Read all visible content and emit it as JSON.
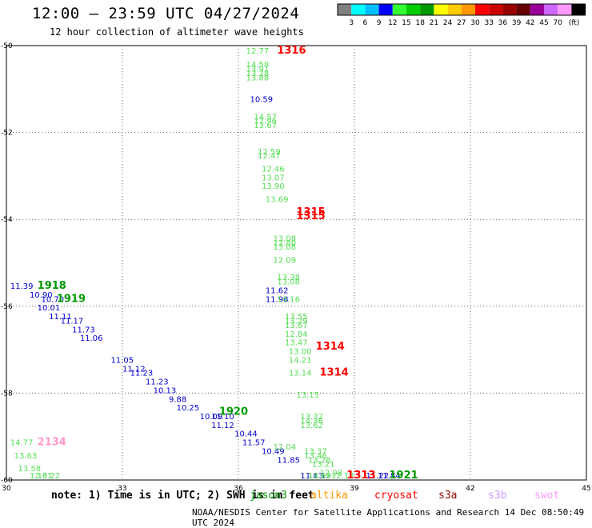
{
  "header": {
    "title": "12:00 — 23:59 UTC 04/27/2024",
    "subtitle": "12 hour collection of altimeter wave heights"
  },
  "colorbar": {
    "colors": [
      "#808080",
      "#00ffff",
      "#00bfff",
      "#0000ff",
      "#33ff33",
      "#00cc00",
      "#009900",
      "#ffff00",
      "#ffcc00",
      "#ff9900",
      "#ff0000",
      "#cc0000",
      "#990000",
      "#660000",
      "#990099",
      "#cc66ff",
      "#ff99ff",
      "#000000"
    ],
    "labels": [
      "3",
      "6",
      "9",
      "12",
      "15",
      "18",
      "21",
      "24",
      "27",
      "30",
      "33",
      "36",
      "39",
      "42",
      "45",
      "70"
    ],
    "unit": "(ft)"
  },
  "footer": {
    "note": "note: 1) Time is in UTC; 2) SWH is in feet",
    "credit": "NOAA/NESDIS Center for Satellite Applications and Research   14 Dec 08:50:49 UTC 2024",
    "satellites": [
      {
        "name": "jason3",
        "color": "#009900"
      },
      {
        "name": "altika",
        "color": "#ff9900"
      },
      {
        "name": "cryosat",
        "color": "#ff0000"
      },
      {
        "name": "s3a",
        "color": "#990000"
      },
      {
        "name": "s3b",
        "color": "#cc99ff"
      },
      {
        "name": "swot",
        "color": "#ff99ff"
      }
    ]
  },
  "chart_data": {
    "type": "scatter",
    "title": "12:00 — 23:59 UTC 04/27/2024",
    "subtitle": "12 hour collection of altimeter wave heights",
    "xlabel": "",
    "ylabel": "",
    "xlim": [
      30,
      45
    ],
    "ylim": [
      -60,
      -50
    ],
    "xticks": [
      "30",
      "33",
      "36",
      "39",
      "42",
      "45"
    ],
    "yticks": [
      "-50",
      "-52",
      "-54",
      "-56",
      "-58",
      "-60"
    ],
    "grid": true,
    "series": [
      {
        "color": "#0000cc",
        "points": [
          {
            "x": 30.1,
            "y": -55.6,
            "label": "11.39"
          },
          {
            "x": 30.6,
            "y": -55.8,
            "label": "10.90"
          },
          {
            "x": 30.9,
            "y": -55.9,
            "label": "10.70"
          },
          {
            "x": 30.8,
            "y": -56.1,
            "label": "10.01"
          },
          {
            "x": 31.1,
            "y": -56.3,
            "label": "11.11"
          },
          {
            "x": 31.4,
            "y": -56.4,
            "label": "11.17"
          },
          {
            "x": 31.7,
            "y": -56.6,
            "label": "11.73"
          },
          {
            "x": 31.9,
            "y": -56.8,
            "label": "11.06"
          },
          {
            "x": 32.7,
            "y": -57.3,
            "label": "11.05"
          },
          {
            "x": 33.0,
            "y": -57.5,
            "label": "11.12"
          },
          {
            "x": 33.2,
            "y": -57.6,
            "label": "11.23"
          },
          {
            "x": 33.6,
            "y": -57.8,
            "label": "11.23"
          },
          {
            "x": 33.8,
            "y": -58.0,
            "label": "10.13"
          },
          {
            "x": 34.2,
            "y": -58.2,
            "label": "9.88"
          },
          {
            "x": 34.4,
            "y": -58.4,
            "label": "10.25"
          },
          {
            "x": 35.0,
            "y": -58.6,
            "label": "10.09"
          },
          {
            "x": 35.3,
            "y": -58.6,
            "label": "11.10"
          },
          {
            "x": 35.3,
            "y": -58.8,
            "label": "11.12"
          },
          {
            "x": 35.9,
            "y": -59.0,
            "label": "10.44"
          },
          {
            "x": 36.1,
            "y": -59.2,
            "label": "11.57"
          },
          {
            "x": 36.6,
            "y": -59.4,
            "label": "10.49"
          },
          {
            "x": 37.0,
            "y": -59.6,
            "label": "11.85"
          },
          {
            "x": 37.6,
            "y": -60.0,
            "label": "11.83"
          },
          {
            "x": 37.8,
            "y": -60.2,
            "label": "11.12"
          },
          {
            "x": 39.3,
            "y": -60.7,
            "label": "11.22"
          },
          {
            "x": 39.6,
            "y": -60.8,
            "label": "11.84"
          },
          {
            "x": 36.3,
            "y": -51.3,
            "label": "10.59"
          },
          {
            "x": 36.7,
            "y": -55.7,
            "label": "11.62"
          },
          {
            "x": 36.7,
            "y": -55.9,
            "label": "11.98"
          }
        ]
      },
      {
        "color": "#55dd55",
        "points": [
          {
            "x": 36.2,
            "y": -50.1,
            "label": "12.77"
          },
          {
            "x": 36.2,
            "y": -50.5,
            "label": "14.58"
          },
          {
            "x": 36.2,
            "y": -50.6,
            "label": "13.91"
          },
          {
            "x": 36.2,
            "y": -50.7,
            "label": "13.28"
          },
          {
            "x": 36.2,
            "y": -50.8,
            "label": "13.88"
          },
          {
            "x": 36.4,
            "y": -51.7,
            "label": "14.57"
          },
          {
            "x": 36.4,
            "y": -51.8,
            "label": "12.96"
          },
          {
            "x": 36.4,
            "y": -51.9,
            "label": "13.67"
          },
          {
            "x": 36.5,
            "y": -52.5,
            "label": "12.59"
          },
          {
            "x": 36.5,
            "y": -52.6,
            "label": "12.47"
          },
          {
            "x": 36.6,
            "y": -52.9,
            "label": "12.46"
          },
          {
            "x": 36.6,
            "y": -53.1,
            "label": "13.07"
          },
          {
            "x": 36.6,
            "y": -53.3,
            "label": "13.90"
          },
          {
            "x": 36.7,
            "y": -53.6,
            "label": "13.69"
          },
          {
            "x": 36.9,
            "y": -54.5,
            "label": "13.08"
          },
          {
            "x": 36.9,
            "y": -54.6,
            "label": "12.80"
          },
          {
            "x": 36.9,
            "y": -54.7,
            "label": "13.08"
          },
          {
            "x": 36.9,
            "y": -55.0,
            "label": "12.09"
          },
          {
            "x": 37.0,
            "y": -55.4,
            "label": "13.38"
          },
          {
            "x": 37.0,
            "y": -55.5,
            "label": "13.08"
          },
          {
            "x": 37.0,
            "y": -55.9,
            "label": "14.16"
          },
          {
            "x": 37.2,
            "y": -56.3,
            "label": "13.55"
          },
          {
            "x": 37.2,
            "y": -56.4,
            "label": "13.29"
          },
          {
            "x": 37.2,
            "y": -56.5,
            "label": "13.67"
          },
          {
            "x": 37.2,
            "y": -56.7,
            "label": "12.84"
          },
          {
            "x": 37.2,
            "y": -56.9,
            "label": "13.47"
          },
          {
            "x": 37.3,
            "y": -57.1,
            "label": "13.00"
          },
          {
            "x": 37.3,
            "y": -57.3,
            "label": "14.21"
          },
          {
            "x": 37.3,
            "y": -57.6,
            "label": "13.14"
          },
          {
            "x": 37.5,
            "y": -58.1,
            "label": "13.15"
          },
          {
            "x": 37.6,
            "y": -58.6,
            "label": "13.32"
          },
          {
            "x": 37.6,
            "y": -58.7,
            "label": "14.36"
          },
          {
            "x": 37.6,
            "y": -58.8,
            "label": "13.62"
          },
          {
            "x": 36.9,
            "y": -59.3,
            "label": "12.04"
          },
          {
            "x": 37.7,
            "y": -59.4,
            "label": "13.37"
          },
          {
            "x": 37.7,
            "y": -59.5,
            "label": "13.46"
          },
          {
            "x": 37.8,
            "y": -59.6,
            "label": "13.28"
          },
          {
            "x": 37.9,
            "y": -59.7,
            "label": "13.21"
          },
          {
            "x": 38.1,
            "y": -59.9,
            "label": "12.98"
          },
          {
            "x": 38.4,
            "y": -60.0,
            "label": "12.13"
          },
          {
            "x": 37.8,
            "y": -60.2,
            "label": "13.55"
          },
          {
            "x": 37.8,
            "y": -60.3,
            "label": "12.62"
          },
          {
            "x": 30.1,
            "y": -59.2,
            "label": "14.77"
          },
          {
            "x": 30.2,
            "y": -59.5,
            "label": "13.63"
          },
          {
            "x": 30.3,
            "y": -59.8,
            "label": "13.58"
          },
          {
            "x": 30.6,
            "y": -60.1,
            "label": "12.61"
          },
          {
            "x": 30.8,
            "y": -60.4,
            "label": "13.22"
          }
        ]
      }
    ],
    "pass_labels": [
      {
        "x": 37.0,
        "y": -50.1,
        "label": "1316",
        "color": "#ff0000"
      },
      {
        "x": 37.5,
        "y": -53.9,
        "label": "1315",
        "color": "#ff0000"
      },
      {
        "x": 37.5,
        "y": -54.0,
        "label": "1315",
        "color": "#ff0000"
      },
      {
        "x": 38.0,
        "y": -57.0,
        "label": "1314",
        "color": "#ff0000"
      },
      {
        "x": 38.1,
        "y": -57.6,
        "label": "1314",
        "color": "#ff0000"
      },
      {
        "x": 38.8,
        "y": -60.2,
        "label": "1313",
        "color": "#ff0000"
      },
      {
        "x": 38.8,
        "y": -60.3,
        "label": "1313",
        "color": "#ff0000"
      },
      {
        "x": 30.8,
        "y": -55.6,
        "label": "1918",
        "color": "#009900"
      },
      {
        "x": 31.3,
        "y": -55.9,
        "label": "1919",
        "color": "#009900"
      },
      {
        "x": 35.5,
        "y": -58.5,
        "label": "1920",
        "color": "#009900"
      },
      {
        "x": 39.9,
        "y": -60.6,
        "label": "1921",
        "color": "#009900"
      },
      {
        "x": 30.8,
        "y": -59.2,
        "label": "2134",
        "color": "#ff99cc"
      }
    ]
  }
}
